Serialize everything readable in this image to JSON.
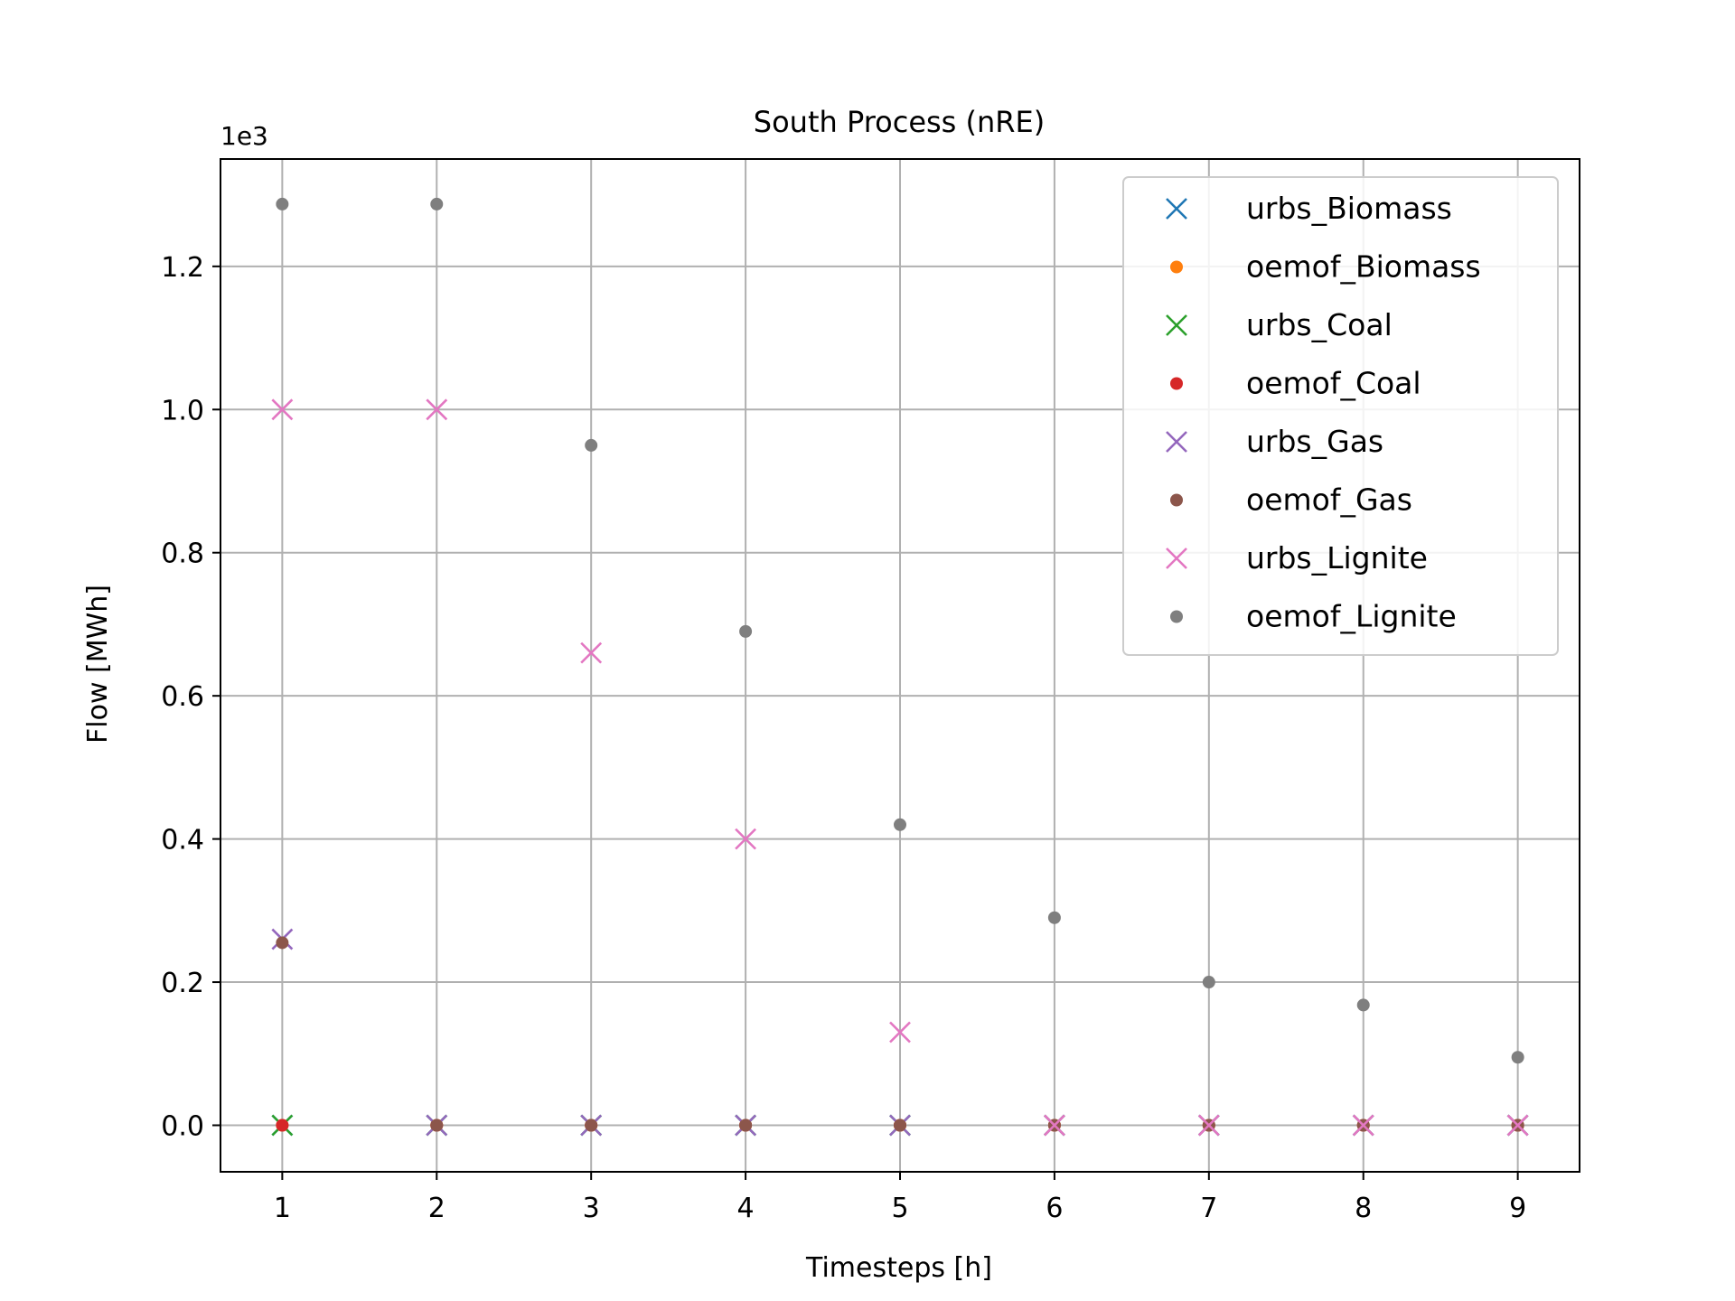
{
  "chart_data": {
    "type": "scatter",
    "title": "South Process (nRE)",
    "xlabel": "Timesteps [h]",
    "ylabel": "Flow [MWh]",
    "y_offset_label": "1e3",
    "x": [
      1,
      2,
      3,
      4,
      5,
      6,
      7,
      8,
      9
    ],
    "xticks": [
      "1",
      "2",
      "3",
      "4",
      "5",
      "6",
      "7",
      "8",
      "9"
    ],
    "yticks": [
      {
        "value": 0.0,
        "label": "0.0"
      },
      {
        "value": 0.2,
        "label": "0.2"
      },
      {
        "value": 0.4,
        "label": "0.4"
      },
      {
        "value": 0.6,
        "label": "0.6"
      },
      {
        "value": 0.8,
        "label": "0.8"
      },
      {
        "value": 1.0,
        "label": "1.0"
      },
      {
        "value": 1.2,
        "label": "1.2"
      }
    ],
    "xlim": [
      0.6,
      9.4
    ],
    "ylim": [
      -0.065,
      1.35
    ],
    "grid": true,
    "legend_position": "top-right",
    "series": [
      {
        "name": "urbs_Biomass",
        "marker": "x",
        "color": "#1f77b4",
        "values": [
          0,
          0,
          0,
          0,
          0,
          0,
          0,
          0,
          0
        ]
      },
      {
        "name": "oemof_Biomass",
        "marker": "dot",
        "color": "#ff7f0e",
        "values": [
          0,
          0,
          0,
          0,
          0,
          0,
          0,
          0,
          0
        ]
      },
      {
        "name": "urbs_Coal",
        "marker": "x",
        "color": "#2ca02c",
        "values": [
          0,
          0,
          0,
          0,
          0,
          0,
          0,
          0,
          0
        ]
      },
      {
        "name": "oemof_Coal",
        "marker": "dot",
        "color": "#d62728",
        "values": [
          0,
          0,
          0,
          0,
          0,
          0,
          0,
          0,
          0
        ]
      },
      {
        "name": "urbs_Gas",
        "marker": "x",
        "color": "#9467bd",
        "values": [
          0.26,
          0,
          0,
          0,
          0,
          0,
          0,
          0,
          0
        ]
      },
      {
        "name": "oemof_Gas",
        "marker": "dot",
        "color": "#8c564b",
        "values": [
          0.255,
          0,
          0,
          0,
          0,
          0,
          0,
          0,
          0
        ]
      },
      {
        "name": "urbs_Lignite",
        "marker": "x",
        "color": "#e377c2",
        "values": [
          1.0,
          1.0,
          0.66,
          0.4,
          0.13,
          0,
          0,
          0,
          0
        ]
      },
      {
        "name": "oemof_Lignite",
        "marker": "dot",
        "color": "#7f7f7f",
        "values": [
          1.287,
          1.287,
          0.95,
          0.69,
          0.42,
          0.29,
          0.2,
          0.168,
          0.095
        ]
      }
    ]
  }
}
